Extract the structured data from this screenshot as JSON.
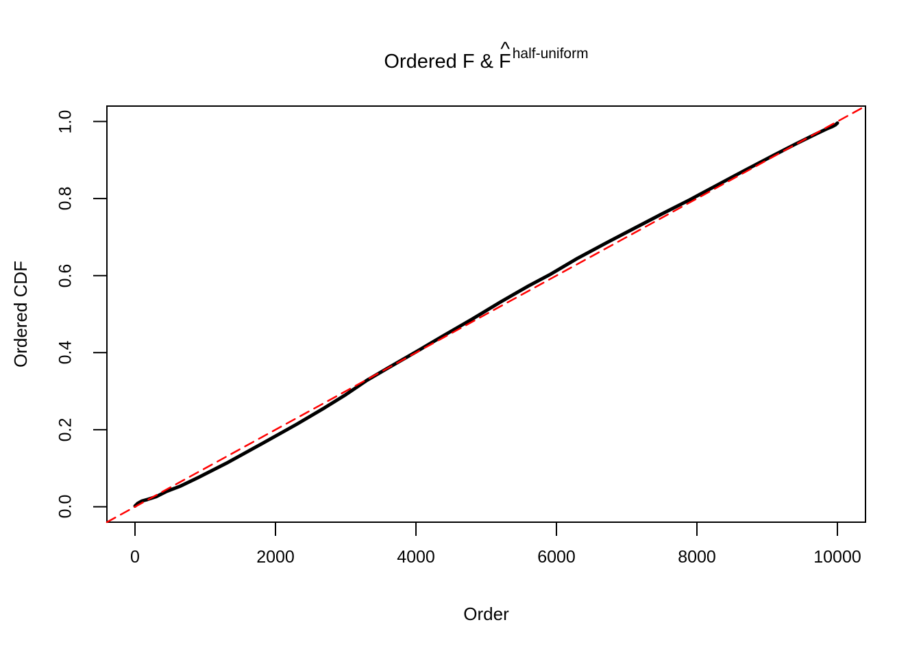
{
  "figure": {
    "title": {
      "prefix": "Ordered F & ",
      "base": "F",
      "hat": "^",
      "superscript": "half-uniform"
    },
    "x_axis": {
      "label": "Order",
      "tick_labels": [
        "0",
        "2000",
        "4000",
        "6000",
        "8000",
        "10000"
      ],
      "tick_values": [
        0,
        2000,
        4000,
        6000,
        8000,
        10000
      ]
    },
    "y_axis": {
      "label": "Ordered CDF",
      "tick_labels": [
        "0.0",
        "0.2",
        "0.4",
        "0.6",
        "0.8",
        "1.0"
      ],
      "tick_values": [
        0,
        0.2,
        0.4,
        0.6,
        0.8,
        1.0
      ]
    },
    "colors": {
      "curve": "#000000",
      "reference_line": "#FF0000",
      "frame": "#000000",
      "background": "#FFFFFF"
    }
  },
  "chart_data": {
    "type": "line",
    "title": "Ordered F & F-hat^half-uniform",
    "xlabel": "Order",
    "ylabel": "Ordered CDF",
    "xlim": [
      -400,
      10400
    ],
    "ylim": [
      -0.04,
      1.04
    ],
    "grid": false,
    "legend": "none",
    "series": [
      {
        "name": "ordered-cdf-curve",
        "color": "#000000",
        "style": "solid",
        "x": [
          0,
          40,
          100,
          180,
          300,
          450,
          640,
          900,
          1300,
          1800,
          2300,
          2700,
          3000,
          3300,
          3600,
          4000,
          4400,
          4800,
          5200,
          5600,
          5900,
          6300,
          6700,
          7100,
          7500,
          7900,
          8300,
          8700,
          9100,
          9400,
          9700,
          9850,
          9930,
          9970,
          10000
        ],
        "y": [
          0.002,
          0.009,
          0.015,
          0.019,
          0.026,
          0.04,
          0.053,
          0.076,
          0.113,
          0.163,
          0.214,
          0.257,
          0.291,
          0.328,
          0.36,
          0.402,
          0.445,
          0.487,
          0.531,
          0.573,
          0.602,
          0.645,
          0.684,
          0.722,
          0.76,
          0.797,
          0.836,
          0.875,
          0.913,
          0.941,
          0.968,
          0.981,
          0.987,
          0.991,
          0.996
        ]
      },
      {
        "name": "diagonal-reference-line",
        "color": "#FF0000",
        "style": "dashed",
        "x": [
          -400,
          10400
        ],
        "y": [
          -0.04,
          1.04
        ]
      }
    ]
  }
}
